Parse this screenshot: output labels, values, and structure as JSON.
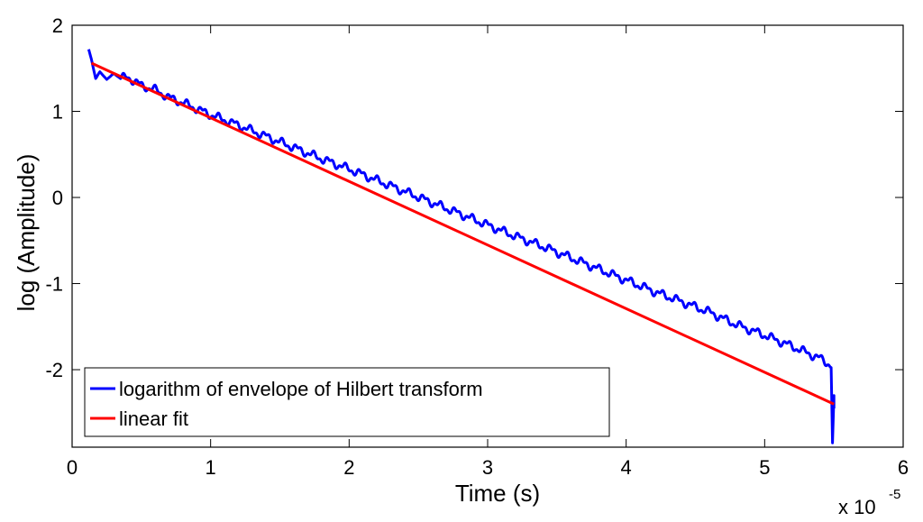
{
  "chart_data": {
    "type": "line",
    "title": "",
    "xlabel": "Time (s)",
    "ylabel": "log (Amplitude)",
    "x_multiplier_label": "x 10",
    "x_multiplier_exponent": "-5",
    "xlim": [
      0,
      6
    ],
    "ylim": [
      -2.9,
      2
    ],
    "x_ticks": [
      0,
      1,
      2,
      3,
      4,
      5,
      6
    ],
    "x_tick_labels": [
      "0",
      "1",
      "2",
      "3",
      "4",
      "5",
      "6"
    ],
    "y_ticks": [
      -2,
      -1,
      0,
      1,
      2
    ],
    "y_tick_labels": [
      "-2",
      "-1",
      "0",
      "1",
      "2"
    ],
    "grid": false,
    "legend_position": "bottom-left",
    "series": [
      {
        "name": "logarithm of envelope of Hilbert transform",
        "color": "#0000ff",
        "x": [
          0.12,
          0.14,
          0.17,
          0.2,
          0.25,
          0.3,
          0.35,
          0.4,
          0.5,
          0.6,
          0.7,
          0.8,
          0.9,
          1.0,
          1.2,
          1.4,
          1.6,
          1.8,
          2.0,
          2.2,
          2.4,
          2.6,
          2.8,
          3.0,
          3.2,
          3.4,
          3.6,
          3.8,
          4.0,
          4.2,
          4.4,
          4.6,
          4.8,
          5.0,
          5.2,
          5.4,
          5.48,
          5.49,
          5.5,
          5.5
        ],
        "y": [
          1.72,
          1.6,
          1.38,
          1.46,
          1.37,
          1.44,
          1.38,
          1.4,
          1.3,
          1.25,
          1.16,
          1.1,
          1.03,
          0.96,
          0.84,
          0.71,
          0.58,
          0.45,
          0.33,
          0.2,
          0.07,
          -0.06,
          -0.19,
          -0.32,
          -0.45,
          -0.57,
          -0.7,
          -0.83,
          -0.96,
          -1.09,
          -1.21,
          -1.33,
          -1.48,
          -1.6,
          -1.73,
          -1.87,
          -1.95,
          -2.85,
          -2.3,
          -2.45
        ]
      },
      {
        "name": "linear fit",
        "color": "#ff0000",
        "x": [
          0.14,
          5.5
        ],
        "y": [
          1.56,
          -2.4
        ]
      }
    ]
  }
}
